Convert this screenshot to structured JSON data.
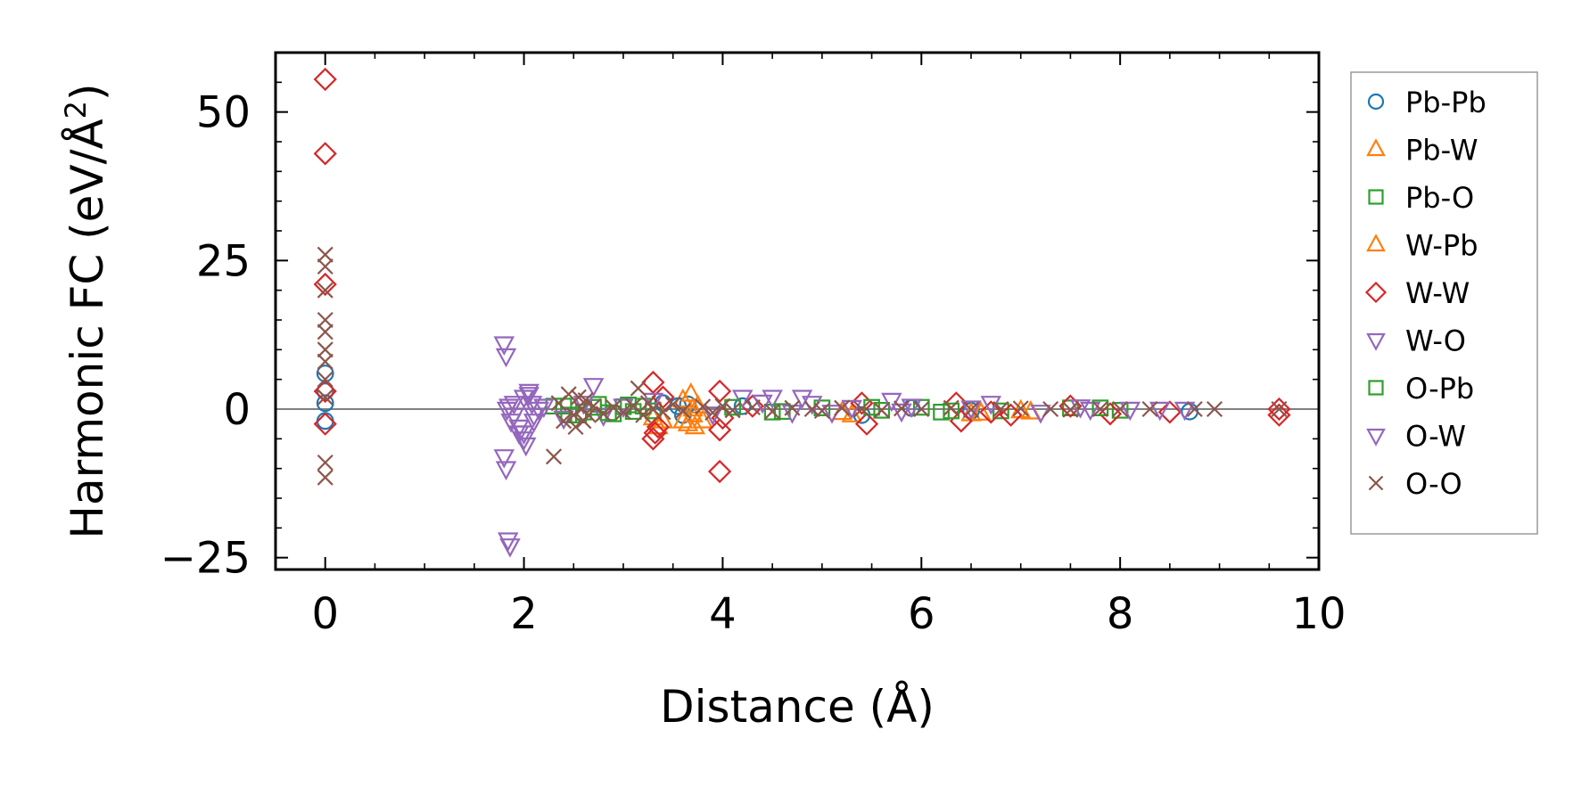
{
  "chart_data": {
    "type": "scatter",
    "xlabel": "Distance (Å)",
    "ylabel_main": "Harmonic FC (eV/Å",
    "ylabel_sup": "2",
    "ylabel_close": ")",
    "xlim": [
      -0.5,
      10.0
    ],
    "ylim": [
      -27,
      60
    ],
    "xticks": [
      0,
      2,
      4,
      6,
      8,
      10
    ],
    "xtick_labels": [
      "0",
      "2",
      "4",
      "6",
      "8",
      "10"
    ],
    "yticks": [
      -25,
      0,
      25,
      50
    ],
    "ytick_labels": [
      "−25",
      "0",
      "25",
      "50"
    ],
    "zero_line": true,
    "grid": false,
    "legend_position": "outside-right",
    "series": [
      {
        "name": "Pb-Pb",
        "marker": "circle",
        "color": "#1f77b4",
        "points": [
          [
            0,
            6
          ],
          [
            0,
            -2
          ],
          [
            0,
            3
          ],
          [
            0,
            1
          ],
          [
            3.4,
            1
          ],
          [
            3.55,
            0.5
          ],
          [
            3.6,
            -1
          ],
          [
            3.65,
            0.8
          ],
          [
            4.2,
            0.5
          ],
          [
            5.4,
            -1
          ],
          [
            5.9,
            0.2
          ],
          [
            6.5,
            -0.3
          ],
          [
            8.7,
            -0.4
          ]
        ]
      },
      {
        "name": "Pb-W",
        "marker": "triangle-up",
        "color": "#ff7f0e",
        "points": [
          [
            3.3,
            -1.5
          ],
          [
            3.35,
            -3
          ],
          [
            3.6,
            -2
          ],
          [
            3.68,
            2.5
          ],
          [
            3.7,
            -1
          ],
          [
            3.72,
            -3
          ],
          [
            3.75,
            0.5
          ],
          [
            3.8,
            -2
          ],
          [
            5.3,
            -1
          ],
          [
            6.5,
            -0.8
          ],
          [
            7.1,
            -0.5
          ]
        ]
      },
      {
        "name": "Pb-O",
        "marker": "square",
        "color": "#2ca02c",
        "points": [
          [
            2.3,
            0.5
          ],
          [
            2.45,
            -1
          ],
          [
            2.6,
            -0.5
          ],
          [
            2.75,
            0.8
          ],
          [
            2.9,
            -0.8
          ],
          [
            3.0,
            0.4
          ],
          [
            3.1,
            -0.4
          ],
          [
            3.2,
            0.5
          ],
          [
            3.3,
            -0.3
          ],
          [
            4.5,
            -0.5
          ],
          [
            5.0,
            0.2
          ],
          [
            5.6,
            -0.2
          ],
          [
            6.0,
            0.3
          ],
          [
            6.2,
            -0.5
          ],
          [
            6.8,
            -0.3
          ],
          [
            7.5,
            0.2
          ],
          [
            8.0,
            -0.2
          ]
        ]
      },
      {
        "name": "W-Pb",
        "marker": "triangle-up",
        "color": "#ff7f0e",
        "points": [
          [
            3.4,
            -2
          ],
          [
            3.6,
            1.5
          ],
          [
            3.65,
            -2.5
          ],
          [
            3.7,
            0
          ],
          [
            5.2,
            -0.6
          ],
          [
            6.6,
            -0.7
          ],
          [
            7.0,
            -0.3
          ]
        ]
      },
      {
        "name": "W-W",
        "marker": "diamond",
        "color": "#d62728",
        "points": [
          [
            0,
            55.5
          ],
          [
            0,
            43
          ],
          [
            0,
            21
          ],
          [
            0,
            3
          ],
          [
            0,
            -2.5
          ],
          [
            3.3,
            4.5
          ],
          [
            3.3,
            -5
          ],
          [
            3.32,
            -4
          ],
          [
            3.35,
            -3
          ],
          [
            3.4,
            2
          ],
          [
            3.97,
            3
          ],
          [
            3.97,
            -3.5
          ],
          [
            3.97,
            -10.5
          ],
          [
            4.0,
            -1.5
          ],
          [
            4.3,
            0.5
          ],
          [
            5.4,
            1
          ],
          [
            5.45,
            -2.5
          ],
          [
            6.35,
            1
          ],
          [
            6.4,
            -2
          ],
          [
            6.7,
            -0.5
          ],
          [
            6.9,
            -1
          ],
          [
            7.5,
            0.5
          ],
          [
            7.9,
            -0.8
          ],
          [
            8.5,
            -0.5
          ],
          [
            9.6,
            0
          ],
          [
            9.6,
            -1
          ]
        ]
      },
      {
        "name": "W-O",
        "marker": "triangle-down",
        "color": "#9467bd",
        "points": [
          [
            1.8,
            11
          ],
          [
            1.82,
            9
          ],
          [
            1.8,
            -8
          ],
          [
            1.82,
            -10
          ],
          [
            1.84,
            -22
          ],
          [
            1.86,
            -23
          ],
          [
            1.85,
            0.5
          ],
          [
            1.9,
            -1
          ],
          [
            1.95,
            -3
          ],
          [
            2.0,
            2
          ],
          [
            2.0,
            -4
          ],
          [
            2.02,
            -6
          ],
          [
            2.05,
            3
          ],
          [
            2.08,
            1
          ],
          [
            2.1,
            -2
          ],
          [
            2.15,
            0
          ],
          [
            2.7,
            4
          ],
          [
            2.8,
            -1
          ],
          [
            4.2,
            2
          ],
          [
            4.5,
            2
          ],
          [
            4.8,
            2
          ],
          [
            4.9,
            1
          ],
          [
            5.1,
            -0.5
          ],
          [
            5.7,
            1.5
          ],
          [
            5.9,
            0.5
          ],
          [
            6.7,
            1
          ],
          [
            7.2,
            -0.5
          ],
          [
            7.6,
            0.4
          ],
          [
            8.1,
            0
          ],
          [
            8.4,
            0
          ],
          [
            8.65,
            0
          ]
        ]
      },
      {
        "name": "O-Pb",
        "marker": "square",
        "color": "#2ca02c",
        "points": [
          [
            2.4,
            0.5
          ],
          [
            2.55,
            -1
          ],
          [
            2.7,
            0.3
          ],
          [
            2.85,
            -0.6
          ],
          [
            3.05,
            0.7
          ],
          [
            4.1,
            0.3
          ],
          [
            4.6,
            -0.4
          ],
          [
            5.5,
            0.3
          ],
          [
            6.3,
            -0.3
          ],
          [
            7.8,
            0.2
          ]
        ]
      },
      {
        "name": "O-W",
        "marker": "triangle-down",
        "color": "#9467bd",
        "points": [
          [
            1.83,
            0
          ],
          [
            1.87,
            -2
          ],
          [
            1.9,
            1
          ],
          [
            1.95,
            -4
          ],
          [
            2.0,
            -5
          ],
          [
            2.05,
            2.5
          ],
          [
            2.1,
            -1
          ],
          [
            2.2,
            0.5
          ],
          [
            2.4,
            -1.5
          ],
          [
            2.6,
            1
          ],
          [
            3.0,
            0.5
          ],
          [
            3.3,
            1.5
          ],
          [
            3.9,
            -0.8
          ],
          [
            4.4,
            1.2
          ],
          [
            4.7,
            -0.5
          ],
          [
            5.3,
            0.3
          ],
          [
            5.8,
            -0.3
          ],
          [
            6.5,
            0.2
          ],
          [
            7.7,
            0
          ]
        ]
      },
      {
        "name": "O-O",
        "marker": "x",
        "color": "#8c564b",
        "points": [
          [
            0,
            26
          ],
          [
            0,
            24
          ],
          [
            0,
            20
          ],
          [
            0,
            15
          ],
          [
            0,
            13
          ],
          [
            0,
            10
          ],
          [
            0,
            8
          ],
          [
            0,
            5
          ],
          [
            0,
            2
          ],
          [
            0,
            -9
          ],
          [
            0,
            -11.5
          ],
          [
            2.3,
            -8
          ],
          [
            2.35,
            1
          ],
          [
            2.4,
            -2
          ],
          [
            2.45,
            2.5
          ],
          [
            2.5,
            -1
          ],
          [
            2.52,
            -3
          ],
          [
            2.55,
            2
          ],
          [
            2.58,
            0
          ],
          [
            2.6,
            -2
          ],
          [
            2.62,
            1.5
          ],
          [
            2.65,
            -1
          ],
          [
            2.7,
            0.5
          ],
          [
            2.8,
            -0.8
          ],
          [
            2.9,
            0.3
          ],
          [
            3.0,
            -0.5
          ],
          [
            3.1,
            0.5
          ],
          [
            3.15,
            3.5
          ],
          [
            3.2,
            -1
          ],
          [
            3.25,
            1
          ],
          [
            3.3,
            0
          ],
          [
            3.4,
            -0.5
          ],
          [
            3.5,
            0.8
          ],
          [
            3.6,
            -0.3
          ],
          [
            3.8,
            0.4
          ],
          [
            3.9,
            -0.6
          ],
          [
            4.0,
            0.5
          ],
          [
            4.1,
            -0.2
          ],
          [
            4.3,
            0.3
          ],
          [
            4.5,
            -0.4
          ],
          [
            4.7,
            0.2
          ],
          [
            4.9,
            0
          ],
          [
            5.0,
            -0.3
          ],
          [
            5.2,
            0.2
          ],
          [
            5.4,
            0
          ],
          [
            5.6,
            -0.2
          ],
          [
            5.8,
            0.1
          ],
          [
            6.0,
            0
          ],
          [
            6.3,
            0.2
          ],
          [
            6.5,
            -0.1
          ],
          [
            6.8,
            0
          ],
          [
            7.0,
            0.1
          ],
          [
            7.3,
            0
          ],
          [
            7.5,
            -0.1
          ],
          [
            7.8,
            0
          ],
          [
            8.0,
            0
          ],
          [
            8.3,
            0
          ],
          [
            8.75,
            0
          ],
          [
            8.95,
            0
          ],
          [
            9.6,
            0
          ]
        ]
      }
    ]
  }
}
